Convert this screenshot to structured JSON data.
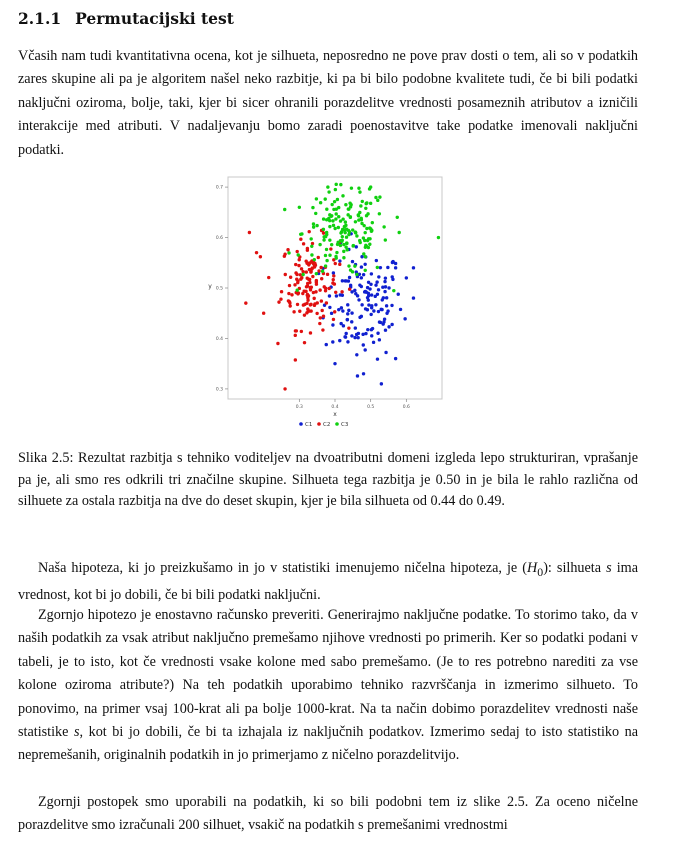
{
  "section": {
    "number": "2.1.1",
    "title": "Permutacijski test"
  },
  "paragraph1": "Včasih nam tudi kvantitativna ocena, kot je silhueta, neposredno ne pove prav dosti o tem, ali so v podatkih zares skupine ali pa je algoritem našel neko razbitje, ki pa bi bilo podobne kvalitete tudi, če bi bili podatki naključni oziroma, bolje, taki, kjer bi sicer ohranili porazdelitve vrednosti posameznih atributov a izničili interakcije med atributi. V nadaljevanju bomo zaradi poenostavitve take podatke imenovali naključni podatki.",
  "caption": "Slika 2.5: Rezultat razbitja s tehniko voditeljev na dvoatributni domeni izgleda lepo strukturiran, vprašanje pa je, ali smo res odkrili tri značilne skupine. Silhueta tega razbitja je 0.50 in je bila le rahlo različna od silhuete za ostala razbitja na dve do deset skupin, kjer je bila silhueta od 0.44 do 0.49.",
  "paragraph2": {
    "before": "Naša hipoteza, ki jo preizkušamo in jo v statistiki imenujemo ničelna hipoteza, je (",
    "h0": "H",
    "h0_sub": "0",
    "middle": "): silhueta ",
    "s": "s",
    "after": " ima vrednost, kot bi jo dobili, če bi bili podatki naključni."
  },
  "paragraph3": {
    "part1": "Zgornjo hipotezo je enostavno računsko preveriti. Generirajmo naključne podatke. To storimo tako, da v naših podatkih za vsak atribut naključno premešamo njihove vrednosti po primerih. Ker so podatki podani v tabeli, je to isto, kot če vrednosti vsake kolone med sabo premešamo. (Je to res potrebno narediti za vse kolone oziroma atribute?) Na teh podatkih uporabimo tehniko razvrščanja in izmerimo silhueto. To ponovimo, na primer vsaj 100-krat ali pa bolje 1000-krat. Na ta način dobimo porazdelitev vrednosti naše statistike ",
    "s": "s",
    "part2": ", kot bi jo dobili, če bi ta izhajala iz naključnih podatkov. Izmerimo sedaj to isto statistiko na nepremešanih, originalnih podatkih in jo primerjamo z ničelno porazdelitvijo."
  },
  "paragraph4": "Zgornji postopek smo uporabili na podatkih, ki so bili podobni tem iz slike 2.5. Za oceno ničelne porazdelitve smo izračunali 200 silhuet, vsakič na podatkih s premešanimi vrednostmi",
  "chart_data": {
    "type": "scatter",
    "xlabel": "x",
    "ylabel": "y",
    "xticks": [
      "0.3",
      "0.4",
      "0.5",
      "0.6"
    ],
    "yticks": [
      "0.3",
      "0.4",
      "0.5",
      "0.6",
      "0.7"
    ],
    "xlim": [
      0.1,
      0.7
    ],
    "ylim": [
      0.28,
      0.72
    ],
    "grid": false,
    "legend_position": "bottom",
    "colors": {
      "C1": "#1020d0",
      "C2": "#e01010",
      "C3": "#10d010"
    },
    "series": [
      {
        "name": "C1",
        "cluster": {
          "center": [
            0.48,
            0.47
          ],
          "spread": [
            0.055,
            0.055
          ],
          "count": 150
        },
        "extra": [
          [
            0.57,
            0.54
          ],
          [
            0.6,
            0.52
          ],
          [
            0.62,
            0.48
          ],
          [
            0.57,
            0.36
          ],
          [
            0.48,
            0.33
          ],
          [
            0.4,
            0.35
          ],
          [
            0.62,
            0.54
          ],
          [
            0.53,
            0.31
          ]
        ]
      },
      {
        "name": "C2",
        "cluster": {
          "center": [
            0.33,
            0.51
          ],
          "spread": [
            0.04,
            0.045
          ],
          "count": 150
        },
        "extra": [
          [
            0.16,
            0.61
          ],
          [
            0.15,
            0.47
          ],
          [
            0.24,
            0.39
          ],
          [
            0.26,
            0.3
          ],
          [
            0.18,
            0.57
          ],
          [
            0.2,
            0.45
          ]
        ]
      },
      {
        "name": "C3",
        "cluster": {
          "center": [
            0.43,
            0.61
          ],
          "spread": [
            0.06,
            0.045
          ],
          "count": 170
        },
        "extra": [
          [
            0.38,
            0.7
          ],
          [
            0.47,
            0.69
          ],
          [
            0.69,
            0.6
          ],
          [
            0.58,
            0.61
          ],
          [
            0.3,
            0.66
          ],
          [
            0.5,
            0.7
          ]
        ]
      }
    ]
  }
}
